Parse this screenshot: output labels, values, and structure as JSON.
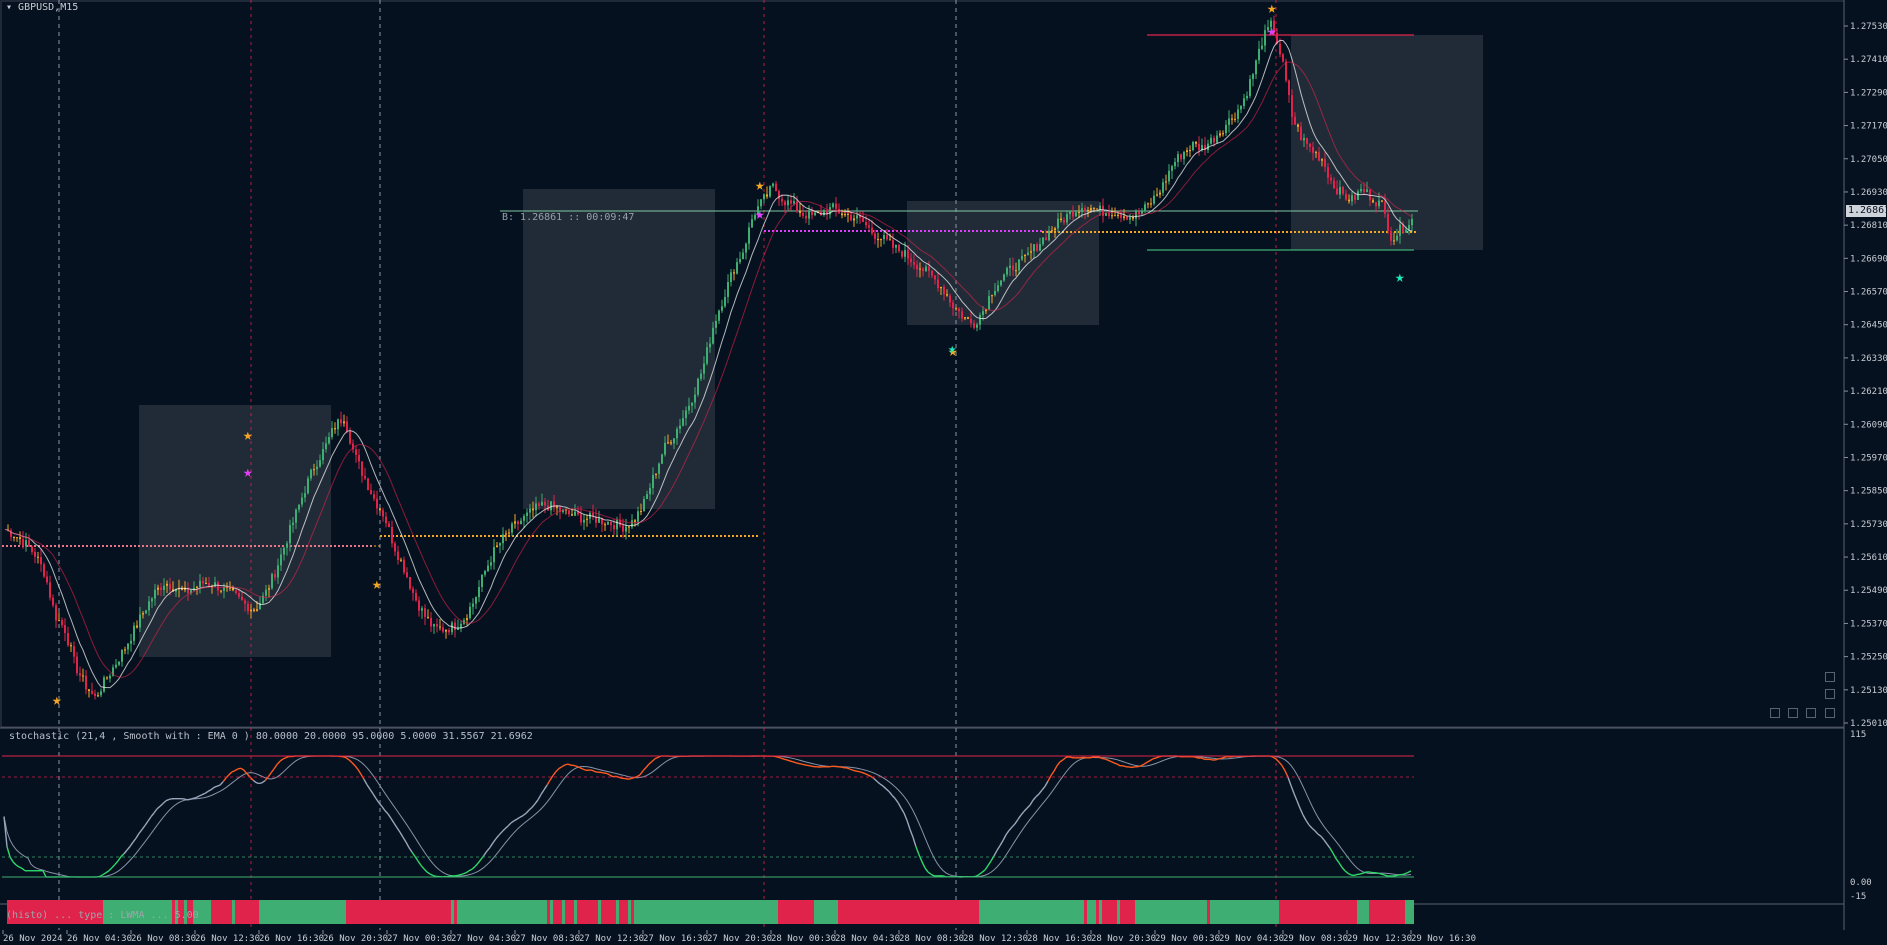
{
  "window": {
    "symbol": "GBPUSD,M15"
  },
  "price_axis": {
    "labels": [
      "1.27530",
      "1.27410",
      "1.27290",
      "1.27170",
      "1.27050",
      "1.26930",
      "1.26810",
      "1.26690",
      "1.26570",
      "1.26450",
      "1.26330",
      "1.26210",
      "1.26090",
      "1.25970",
      "1.25850",
      "1.25730",
      "1.25610",
      "1.25490",
      "1.25370",
      "1.25250",
      "1.25130",
      "1.25010"
    ],
    "current_price": "1.26861"
  },
  "stochastic": {
    "title": "stochastic (21,4 , Smooth with : EMA  0 ) 80.0000 20.0000 95.0000 5.0000 31.5567 21.6962",
    "axis_labels": [
      "115",
      "0.00",
      "-15"
    ],
    "overbought": 80,
    "oversold": 20
  },
  "histo": {
    "label": "(histo) ... type : LWMA ... 5.00"
  },
  "buy_annotation": "B: 1.26861 :: 00:09:47",
  "time_axis": {
    "labels": [
      "26 Nov 2024",
      "26 Nov 04:30",
      "26 Nov 08:30",
      "26 Nov 12:30",
      "26 Nov 16:30",
      "26 Nov 20:30",
      "27 Nov 00:30",
      "27 Nov 04:30",
      "27 Nov 08:30",
      "27 Nov 12:30",
      "27 Nov 16:30",
      "27 Nov 20:30",
      "28 Nov 00:30",
      "28 Nov 04:30",
      "28 Nov 08:30",
      "28 Nov 12:30",
      "28 Nov 16:30",
      "28 Nov 20:30",
      "29 Nov 00:30",
      "29 Nov 04:30",
      "29 Nov 08:30",
      "29 Nov 12:30",
      "29 Nov 16:30"
    ]
  },
  "colors": {
    "background": "#06111f",
    "bull": "#3fae72",
    "bear": "#e0234b",
    "neutral": "#f5a623",
    "magenta": "#e040fb",
    "zone": "#2b3440",
    "teal": "#1de9b6"
  },
  "price_path": [
    [
      1.2571,
      1.2569
    ],
    [
      1.2566,
      1.2562
    ],
    [
      1.2555,
      1.254
    ],
    [
      1.2535,
      1.2522
    ],
    [
      1.2515,
      1.251
    ],
    [
      1.2516,
      1.2522
    ],
    [
      1.2528,
      1.2535
    ],
    [
      1.2542,
      1.2548
    ],
    [
      1.2552,
      1.255
    ],
    [
      1.2548,
      1.255
    ],
    [
      1.2552,
      1.2551
    ],
    [
      1.2549,
      1.2547
    ],
    [
      1.2544,
      1.2542
    ],
    [
      1.2547,
      1.2555
    ],
    [
      1.2565,
      1.2575
    ],
    [
      1.2585,
      1.2594
    ],
    [
      1.26,
      1.2608
    ],
    [
      1.2612,
      1.2598
    ],
    [
      1.259,
      1.2582
    ],
    [
      1.2576,
      1.2565
    ],
    [
      1.2557,
      1.2547
    ],
    [
      1.254,
      1.2535
    ],
    [
      1.2535,
      1.2536
    ],
    [
      1.2539,
      1.2545
    ],
    [
      1.2555,
      1.2563
    ],
    [
      1.2568,
      1.2572
    ],
    [
      1.2575,
      1.2578
    ],
    [
      1.258,
      1.2579
    ],
    [
      1.2577,
      1.2576
    ],
    [
      1.2575,
      1.2575
    ],
    [
      1.2574,
      1.2573
    ],
    [
      1.2572,
      1.2574
    ],
    [
      1.258,
      1.259
    ],
    [
      1.26,
      1.2605
    ],
    [
      1.2612,
      1.262
    ],
    [
      1.263,
      1.2645
    ],
    [
      1.2655,
      1.2665
    ],
    [
      1.2672,
      1.2685
    ],
    [
      1.269,
      1.2695
    ],
    [
      1.269,
      1.2688
    ],
    [
      1.2685,
      1.2684
    ],
    [
      1.2686,
      1.2687
    ],
    [
      1.2685,
      1.2684
    ],
    [
      1.2682,
      1.2678
    ],
    [
      1.2676,
      1.2673
    ],
    [
      1.2671,
      1.2668
    ],
    [
      1.2665,
      1.2662
    ],
    [
      1.2658,
      1.2652
    ],
    [
      1.2648,
      1.2645
    ],
    [
      1.265,
      1.2658
    ],
    [
      1.2662,
      1.2666
    ],
    [
      1.2668,
      1.2672
    ],
    [
      1.2676,
      1.268
    ],
    [
      1.2683,
      1.2686
    ],
    [
      1.2688,
      1.2687
    ],
    [
      1.2686,
      1.2686
    ],
    [
      1.2685,
      1.2684
    ],
    [
      1.2686,
      1.269
    ],
    [
      1.2695,
      1.2703
    ],
    [
      1.2707,
      1.271
    ],
    [
      1.2709,
      1.2712
    ],
    [
      1.2716,
      1.272
    ],
    [
      1.2725,
      1.2735
    ],
    [
      1.2748,
      1.2754
    ],
    [
      1.274,
      1.272
    ],
    [
      1.2712,
      1.2708
    ],
    [
      1.2705,
      1.2696
    ],
    [
      1.2692,
      1.269
    ],
    [
      1.2694,
      1.2691
    ],
    [
      1.2688,
      1.2676
    ],
    [
      1.268,
      1.2683
    ]
  ]
}
